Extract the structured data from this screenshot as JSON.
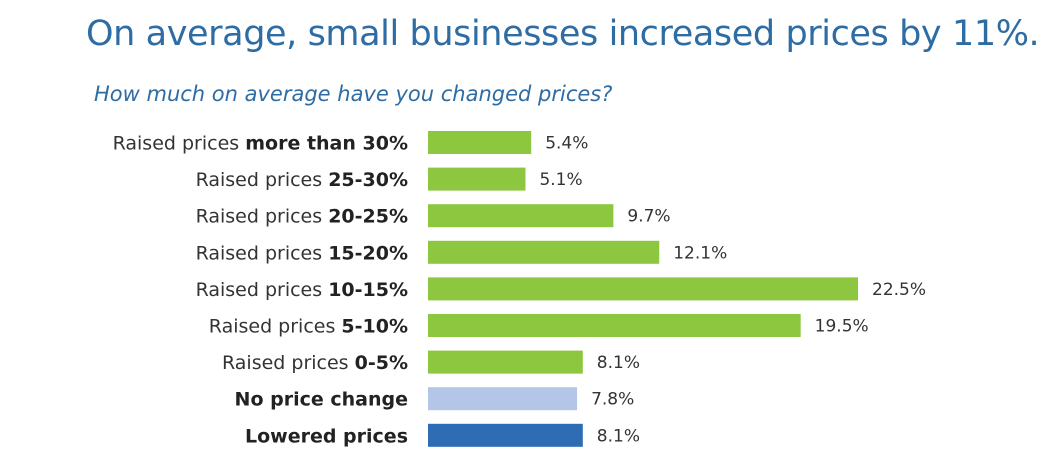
{
  "chart_data": {
    "type": "bar",
    "orientation": "horizontal",
    "title": "On average, small businesses increased prices by 11%.",
    "subtitle": "How much on average have you changed prices?",
    "categories": [
      {
        "text": "Raised prices ",
        "bold": "more than 30%"
      },
      {
        "text": "Raised prices ",
        "bold": "25-30%"
      },
      {
        "text": "Raised prices ",
        "bold": "20-25%"
      },
      {
        "text": "Raised prices ",
        "bold": "15-20%"
      },
      {
        "text": "Raised prices ",
        "bold": "10-15%"
      },
      {
        "text": "Raised prices ",
        "bold": "5-10%"
      },
      {
        "text": "Raised prices ",
        "bold": "0-5%"
      },
      {
        "text": "",
        "bold": "No price change"
      },
      {
        "text": "",
        "bold": "Lowered prices"
      }
    ],
    "values": [
      5.4,
      5.1,
      9.7,
      12.1,
      22.5,
      19.5,
      8.1,
      7.8,
      8.1
    ],
    "value_labels": [
      "5.4%",
      "5.1%",
      "9.7%",
      "12.1%",
      "22.5%",
      "19.5%",
      "8.1%",
      "7.8%",
      "8.1%"
    ],
    "colors": [
      "#8dc63f",
      "#8dc63f",
      "#8dc63f",
      "#8dc63f",
      "#8dc63f",
      "#8dc63f",
      "#8dc63f",
      "#b4c6e7",
      "#2e6db4"
    ],
    "xlim": [
      0,
      22.5
    ],
    "grid": false,
    "legend": "none"
  }
}
